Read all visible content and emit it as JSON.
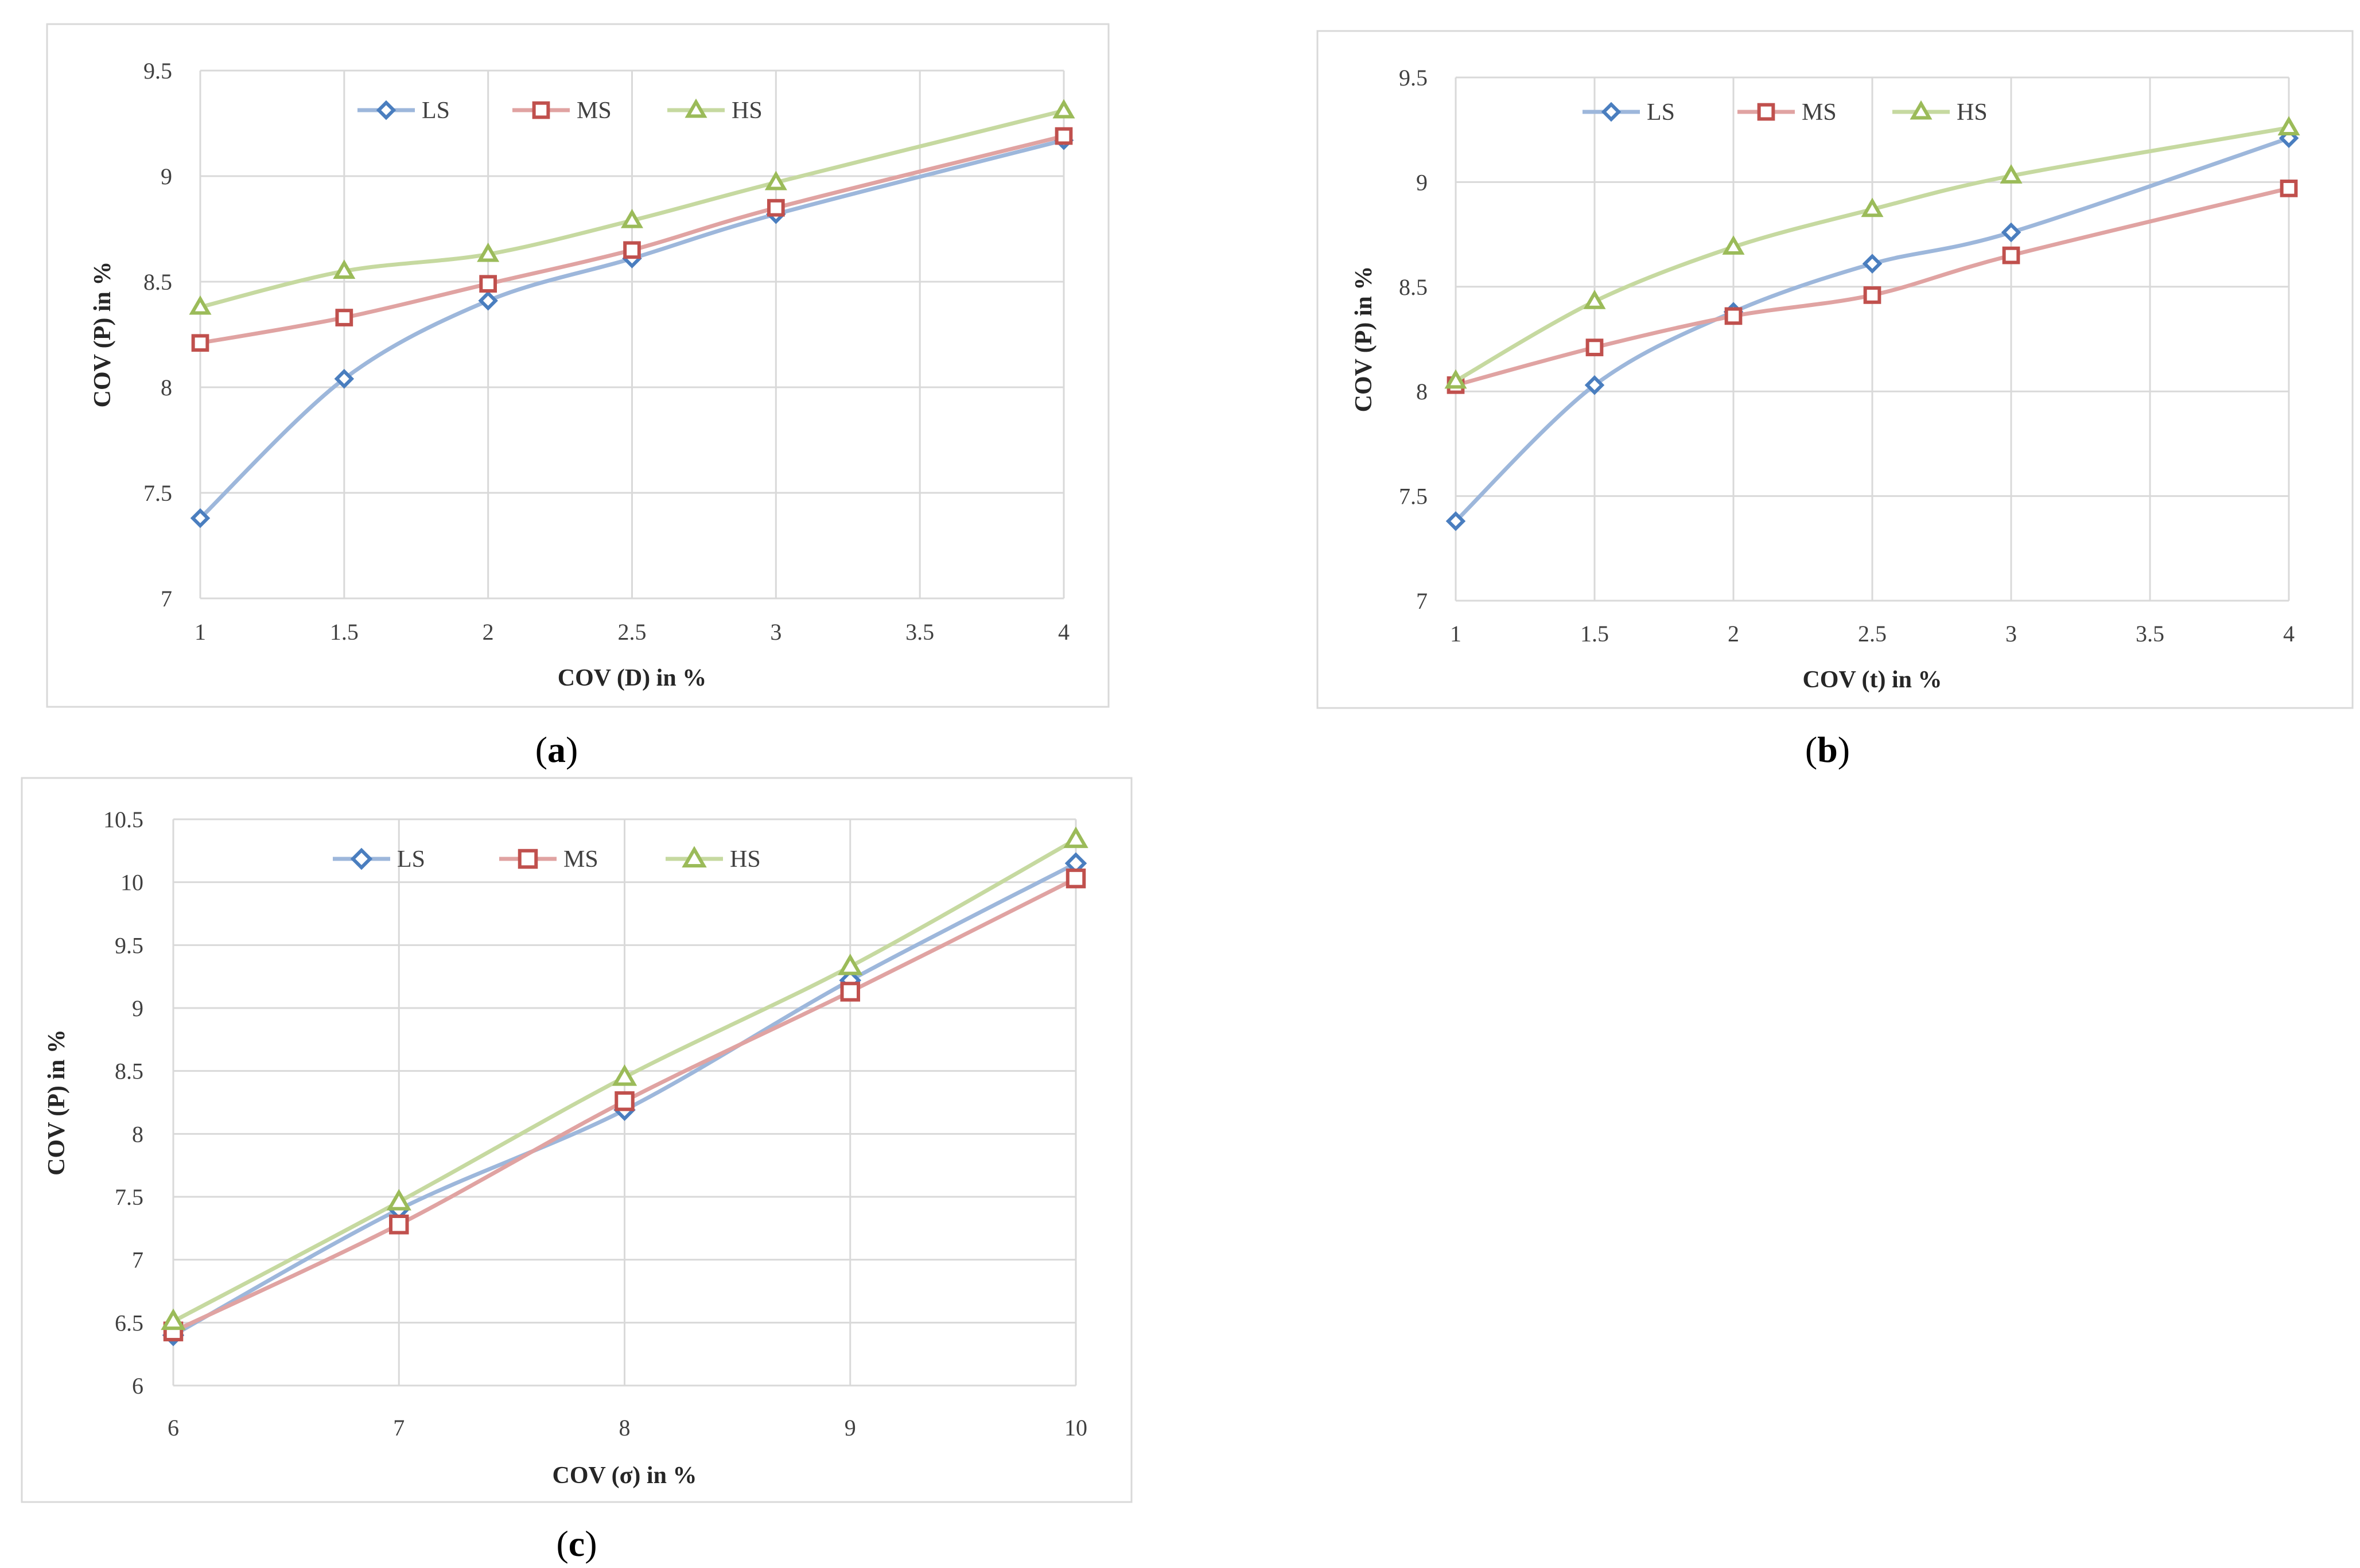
{
  "colors": {
    "LS_line": "#9db7db",
    "LS_marker": "#4a7ebf",
    "MS_line": "#e0a3a2",
    "MS_marker": "#c0504d",
    "HS_line": "#c6d9a0",
    "HS_marker": "#9bbb59",
    "grid": "#d9d9d9"
  },
  "chart_data": [
    {
      "id": "a",
      "type": "line",
      "caption": "a",
      "xlabel": "COV (D) in %",
      "ylabel": "COV (P) in %",
      "xlim": [
        1,
        4
      ],
      "ylim": [
        7,
        9.5
      ],
      "xticks": [
        "1",
        "1.5",
        "2",
        "2.5",
        "3",
        "3.5",
        "4"
      ],
      "yticks": [
        "7",
        "7.5",
        "8",
        "8.5",
        "9",
        "9.5"
      ],
      "x": [
        1,
        1.5,
        2,
        2.5,
        3,
        4
      ],
      "series": [
        {
          "name": "LS",
          "values": [
            7.38,
            8.04,
            8.41,
            8.61,
            8.82,
            9.17
          ]
        },
        {
          "name": "MS",
          "values": [
            8.21,
            8.33,
            8.49,
            8.65,
            8.85,
            9.19
          ]
        },
        {
          "name": "HS",
          "values": [
            8.38,
            8.55,
            8.63,
            8.79,
            8.97,
            9.31
          ]
        }
      ],
      "legend": "top-center",
      "grid": true
    },
    {
      "id": "b",
      "type": "line",
      "caption": "b",
      "xlabel": "COV (t) in %",
      "ylabel": "COV (P) in %",
      "xlim": [
        1,
        4
      ],
      "ylim": [
        7,
        9.5
      ],
      "xticks": [
        "1",
        "1.5",
        "2",
        "2.5",
        "3",
        "3.5",
        "4"
      ],
      "yticks": [
        "7",
        "7.5",
        "8",
        "8.5",
        "9",
        "9.5"
      ],
      "x": [
        1,
        1.5,
        2,
        2.5,
        3,
        4
      ],
      "series": [
        {
          "name": "LS",
          "values": [
            7.38,
            8.03,
            8.38,
            8.61,
            8.76,
            9.21
          ]
        },
        {
          "name": "MS",
          "values": [
            8.03,
            8.21,
            8.36,
            8.46,
            8.65,
            8.97
          ]
        },
        {
          "name": "HS",
          "values": [
            8.05,
            8.43,
            8.69,
            8.87,
            9.03,
            9.26
          ]
        }
      ],
      "legend": "top-center",
      "grid": true
    },
    {
      "id": "c",
      "type": "line",
      "caption": "c",
      "xlabel": "COV (σ) in %",
      "ylabel": "COV (P) in %",
      "xlim": [
        6,
        10
      ],
      "ylim": [
        6,
        10.5
      ],
      "xticks": [
        "6",
        "7",
        "8",
        "9",
        "10"
      ],
      "yticks": [
        "6",
        "6.5",
        "7",
        "7.5",
        "8",
        "8.5",
        "9",
        "9.5",
        "10",
        "10.5"
      ],
      "x": [
        6,
        7,
        8,
        9,
        10
      ],
      "series": [
        {
          "name": "LS",
          "values": [
            6.4,
            7.4,
            8.19,
            9.22,
            10.15
          ]
        },
        {
          "name": "MS",
          "values": [
            6.43,
            7.28,
            8.26,
            9.13,
            10.03
          ]
        },
        {
          "name": "HS",
          "values": [
            6.51,
            7.46,
            8.45,
            9.33,
            10.34
          ]
        }
      ],
      "legend": "top-center",
      "grid": true
    }
  ]
}
